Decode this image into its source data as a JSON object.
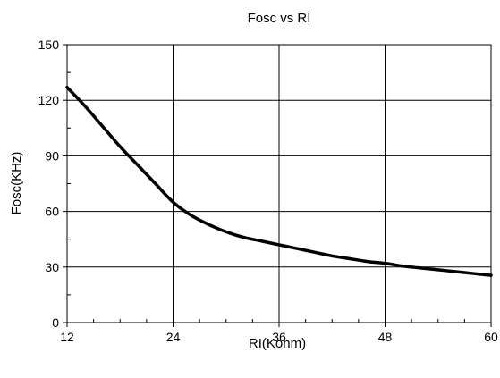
{
  "chart_data": {
    "type": "line",
    "title": "Fosc vs RI",
    "xlabel": "RI(Kohm)",
    "ylabel": "Fosc(KHz)",
    "xlim": [
      12,
      60
    ],
    "ylim": [
      0,
      150
    ],
    "xticks": [
      12,
      24,
      36,
      48,
      60
    ],
    "yticks": [
      0,
      30,
      60,
      90,
      120,
      150
    ],
    "grid": true,
    "series": [
      {
        "x": [
          12,
          14,
          16,
          18,
          20,
          22,
          24,
          26,
          28,
          30,
          32,
          34,
          36,
          38,
          40,
          42,
          44,
          46,
          48,
          50,
          52,
          54,
          56,
          58,
          60
        ],
        "y": [
          127,
          117,
          106,
          95,
          85,
          75,
          65,
          58,
          53,
          49,
          46,
          44,
          42,
          40,
          38,
          36,
          34.5,
          33,
          32,
          30.5,
          29.5,
          28.5,
          27.5,
          26.5,
          25.5
        ]
      }
    ]
  }
}
